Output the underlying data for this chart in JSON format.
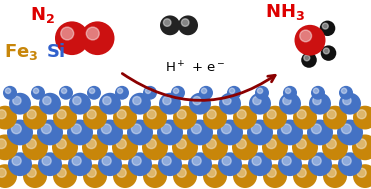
{
  "background_color": "#ffffff",
  "fe_color": "#c8860a",
  "si_color": "#4472c4",
  "n2_color": "#cc1111",
  "nh3_n_color": "#cc1111",
  "nh3_h_color": "#111111",
  "black_sphere_color": "#222222",
  "arrow_color": "#8b0000",
  "text_red": "#dd0000",
  "text_gold": "#c8860a",
  "text_blue": "#3060cc",
  "text_black": "#000000",
  "hplus_text": "H$^+$ + e$^-$"
}
